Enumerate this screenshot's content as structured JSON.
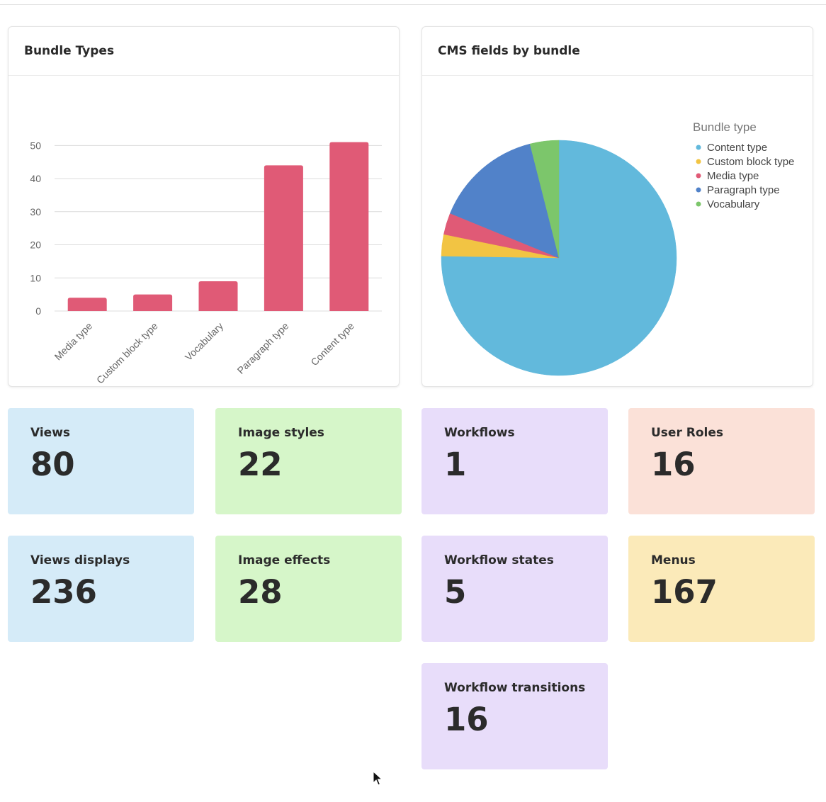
{
  "bar_panel": {
    "title": "Bundle Types"
  },
  "pie_panel": {
    "title": "CMS fields by bundle"
  },
  "chart_data": [
    {
      "type": "bar",
      "title": "Bundle Types",
      "categories": [
        "Media type",
        "Custom block type",
        "Vocabulary",
        "Paragraph type",
        "Content type"
      ],
      "values": [
        4,
        5,
        9,
        44,
        51
      ],
      "yticks": [
        0,
        10,
        20,
        30,
        40,
        50
      ],
      "ylim": [
        0,
        52
      ],
      "grid": true,
      "color": "#e05a76"
    },
    {
      "type": "pie",
      "title": "CMS fields by bundle",
      "legend_title": "Bundle type",
      "legend_position": "top-right",
      "slices": [
        {
          "label": "Content type",
          "value": 76,
          "color": "#62b9dc"
        },
        {
          "label": "Custom block type",
          "value": 3,
          "color": "#f2c443"
        },
        {
          "label": "Media type",
          "value": 3,
          "color": "#e05a76"
        },
        {
          "label": "Paragraph type",
          "value": 15,
          "color": "#5182c9"
        },
        {
          "label": "Vocabulary",
          "value": 4,
          "color": "#7cc66b"
        }
      ]
    }
  ],
  "stats": [
    {
      "label": "Views",
      "value": "80"
    },
    {
      "label": "Image styles",
      "value": "22"
    },
    {
      "label": "Workflows",
      "value": "1"
    },
    {
      "label": "User Roles",
      "value": "16"
    },
    {
      "label": "Views displays",
      "value": "236"
    },
    {
      "label": "Image effects",
      "value": "28"
    },
    {
      "label": "Workflow states",
      "value": "5"
    },
    {
      "label": "Menus",
      "value": "167"
    },
    {
      "label": "Workflow transitions",
      "value": "16"
    }
  ]
}
